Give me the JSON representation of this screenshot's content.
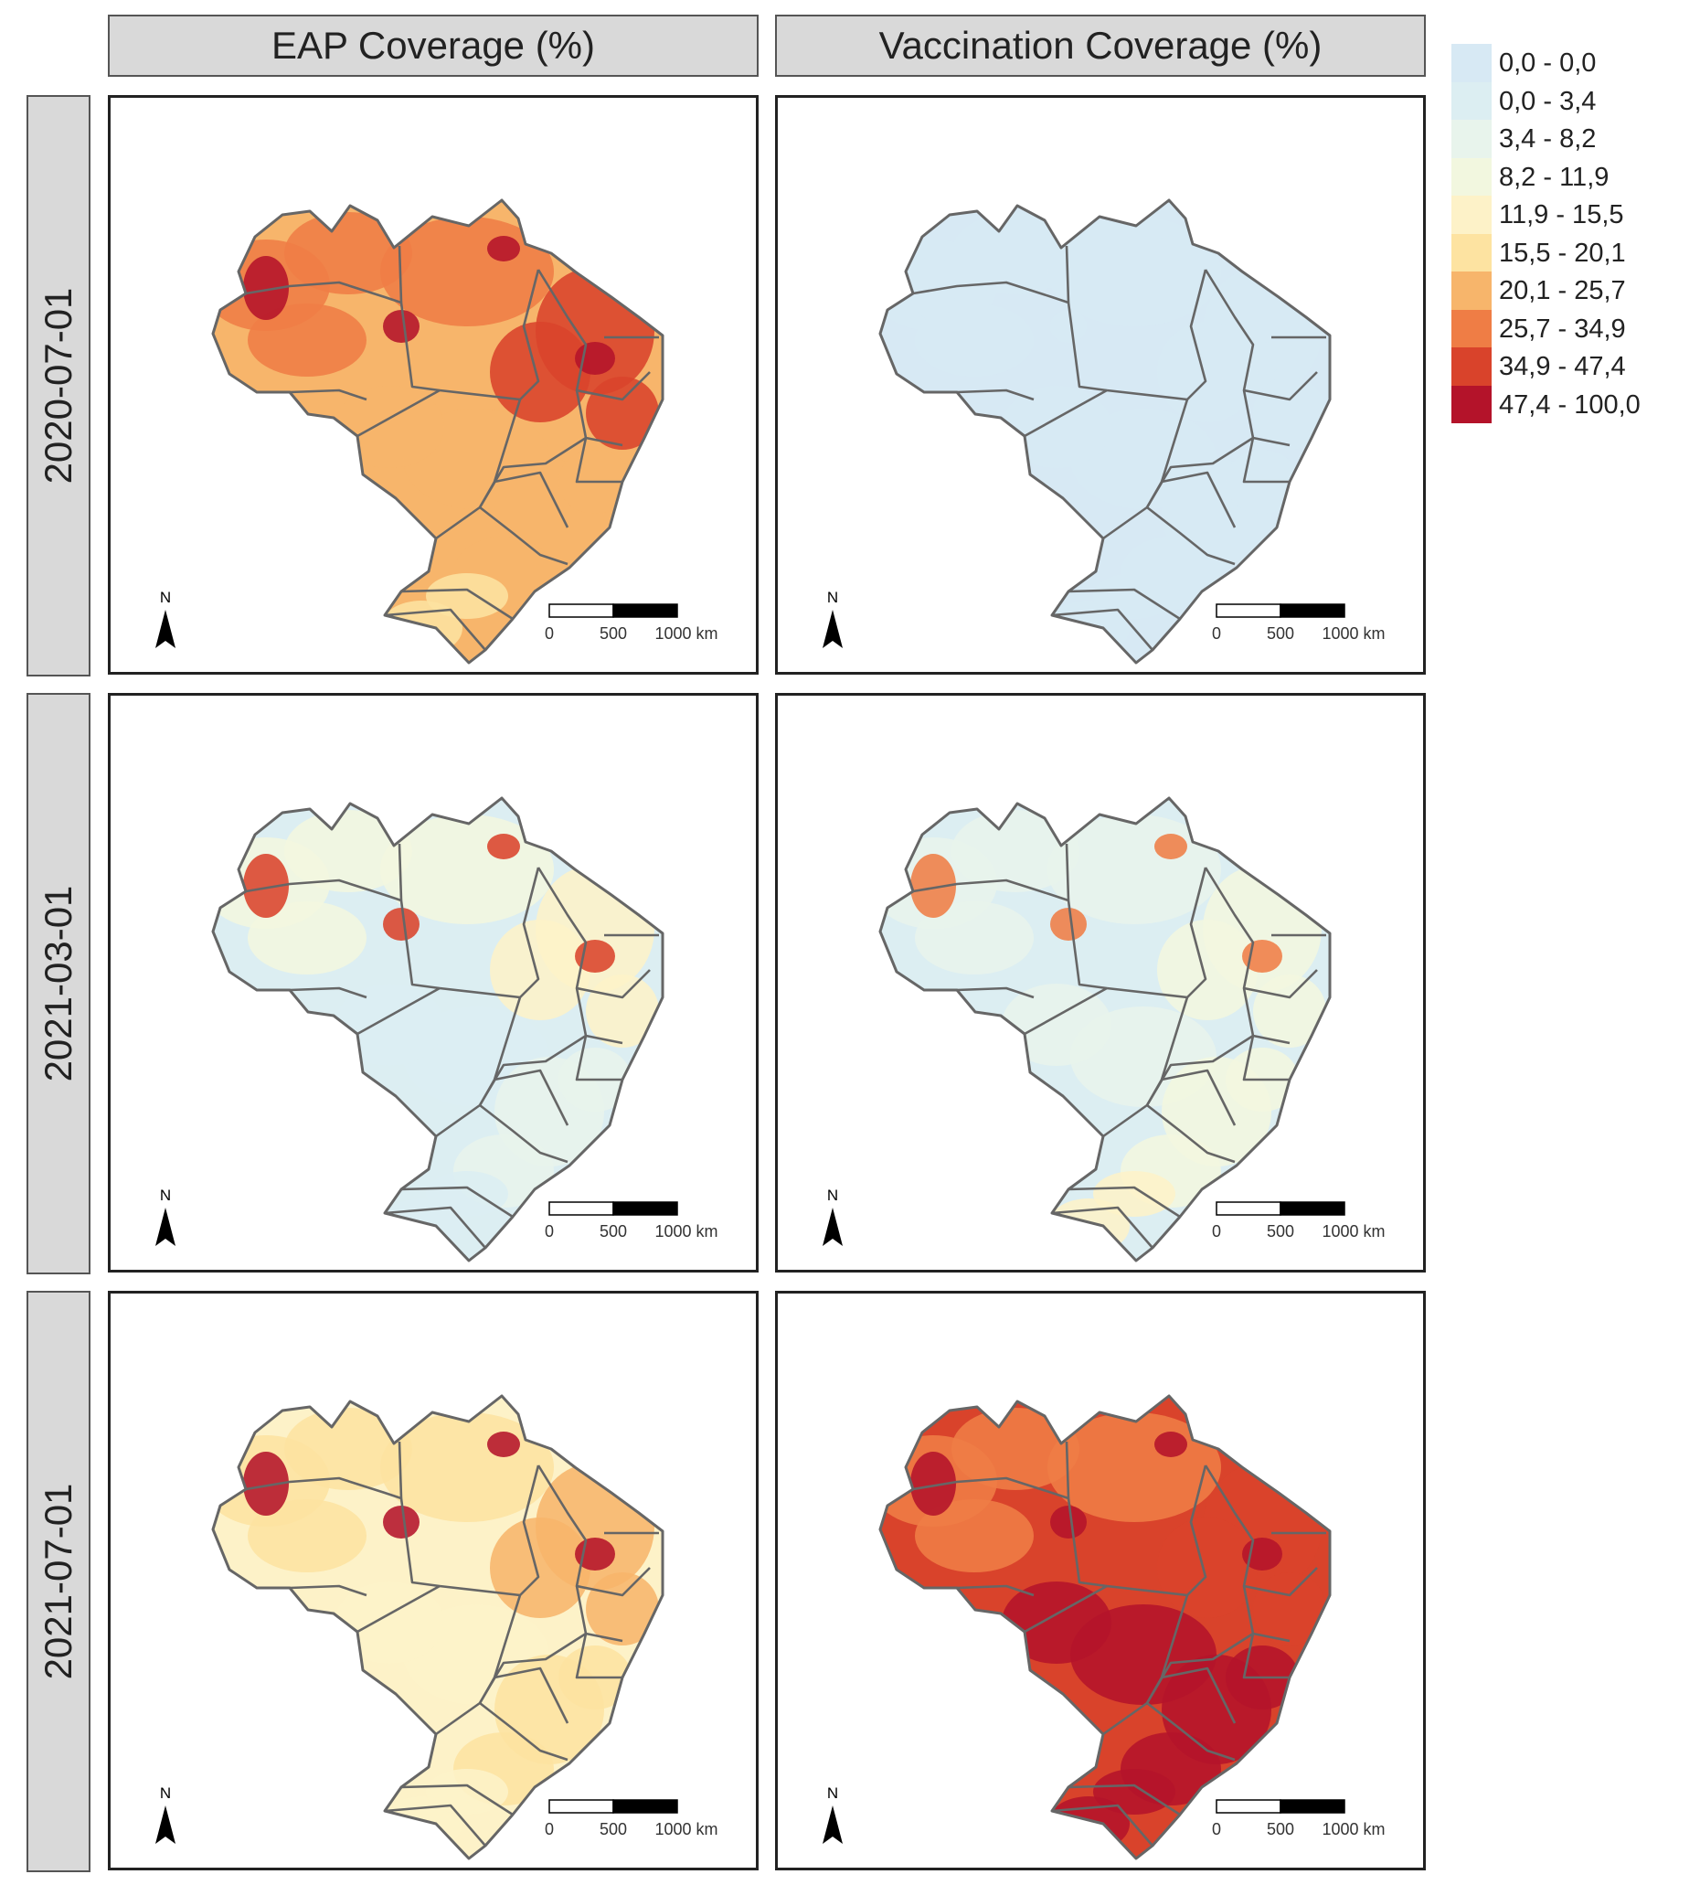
{
  "columns": [
    "EAP Coverage (%)",
    "Vaccination Coverage (%)"
  ],
  "rows": [
    "2020-07-01",
    "2021-03-01",
    "2021-07-01"
  ],
  "legend": [
    {
      "label": "0,0 - 0,0",
      "color": "#d7e9f4"
    },
    {
      "label": "0,0 - 3,4",
      "color": "#dceef2"
    },
    {
      "label": "3,4 - 8,2",
      "color": "#e8f4ec"
    },
    {
      "label": "8,2 - 11,9",
      "color": "#f2f7df"
    },
    {
      "label": "11,9 - 15,5",
      "color": "#fdf2c8"
    },
    {
      "label": "15,5 - 20,1",
      "color": "#fde3a1"
    },
    {
      "label": "20,1 - 25,7",
      "color": "#f7b56b"
    },
    {
      "label": "25,7 - 34,9",
      "color": "#ef7d45"
    },
    {
      "label": "34,9 - 47,4",
      "color": "#d9432b"
    },
    {
      "label": "47,4 - 100,0",
      "color": "#b4132a"
    }
  ],
  "panels": [
    {
      "row": "2020-07-01",
      "column": "EAP Coverage (%)",
      "fills": {
        "base": 6,
        "north": 7,
        "northeast": 8,
        "centerwest": 6,
        "southeast": 6,
        "south": 5,
        "hotspots": 9
      }
    },
    {
      "row": "2020-07-01",
      "column": "Vaccination Coverage (%)",
      "fills": {
        "base": 0,
        "north": 0,
        "northeast": 0,
        "centerwest": 0,
        "southeast": 0,
        "south": 0,
        "hotspots": 0
      }
    },
    {
      "row": "2021-03-01",
      "column": "EAP Coverage (%)",
      "fills": {
        "base": 1,
        "north": 3,
        "northeast": 4,
        "centerwest": 1,
        "southeast": 2,
        "south": 1,
        "hotspots": 8
      }
    },
    {
      "row": "2021-03-01",
      "column": "Vaccination Coverage (%)",
      "fills": {
        "base": 1,
        "north": 2,
        "northeast": 3,
        "centerwest": 2,
        "southeast": 3,
        "south": 4,
        "hotspots": 7
      }
    },
    {
      "row": "2021-07-01",
      "column": "EAP Coverage (%)",
      "fills": {
        "base": 4,
        "north": 5,
        "northeast": 6,
        "centerwest": 4,
        "southeast": 5,
        "south": 4,
        "hotspots": 9
      }
    },
    {
      "row": "2021-07-01",
      "column": "Vaccination Coverage (%)",
      "fills": {
        "base": 8,
        "north": 7,
        "northeast": 8,
        "centerwest": 9,
        "southeast": 9,
        "south": 9,
        "hotspots": 9
      }
    }
  ],
  "north_label": "N",
  "scale_labels": [
    "0",
    "500",
    "1000 km"
  ]
}
